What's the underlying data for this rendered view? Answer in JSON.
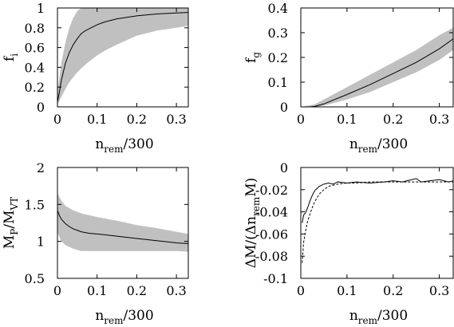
{
  "chart_data": [
    {
      "type": "line",
      "id": "fi",
      "ylabel": "f",
      "ylabel_sub": "i",
      "xlabel": "n",
      "xlabel_sub": "rem",
      "xlabel_suffix": "/300",
      "xlim": [
        0,
        0.33
      ],
      "ylim": [
        0,
        1
      ],
      "xticks": [
        0,
        0.1,
        0.2,
        0.3
      ],
      "xtick_labels": [
        "0",
        "0.1",
        "0.2",
        "0.3"
      ],
      "yticks": [
        0,
        0.2,
        0.4,
        0.6,
        0.8,
        1
      ],
      "ytick_labels": [
        "0",
        "0.2",
        "0.4",
        "0.6",
        "0.8",
        "1"
      ],
      "colors": {
        "band": "#c0c0c0",
        "line": "#000000"
      },
      "band": {
        "x": [
          0,
          0.01,
          0.02,
          0.03,
          0.04,
          0.05,
          0.06,
          0.08,
          0.1,
          0.12,
          0.15,
          0.2,
          0.25,
          0.3,
          0.33
        ],
        "lower": [
          0.02,
          0.1,
          0.18,
          0.25,
          0.3,
          0.35,
          0.39,
          0.46,
          0.52,
          0.57,
          0.63,
          0.72,
          0.77,
          0.8,
          0.82
        ],
        "upper": [
          0.15,
          0.45,
          0.65,
          0.8,
          0.9,
          0.97,
          1.0,
          1.0,
          1.0,
          1.0,
          1.0,
          1.0,
          1.0,
          1.0,
          1.0
        ]
      },
      "series": [
        {
          "x": [
            0,
            0.005,
            0.01,
            0.02,
            0.03,
            0.04,
            0.05,
            0.06,
            0.07,
            0.08,
            0.1,
            0.12,
            0.15,
            0.2,
            0.25,
            0.3,
            0.33
          ],
          "values": [
            0.05,
            0.15,
            0.27,
            0.44,
            0.55,
            0.63,
            0.69,
            0.74,
            0.77,
            0.79,
            0.83,
            0.86,
            0.89,
            0.92,
            0.94,
            0.95,
            0.955
          ]
        }
      ]
    },
    {
      "type": "line",
      "id": "fg",
      "ylabel": "f",
      "ylabel_sub": "g",
      "xlabel": "n",
      "xlabel_sub": "rem",
      "xlabel_suffix": "/300",
      "xlim": [
        0,
        0.33
      ],
      "ylim": [
        0,
        0.4
      ],
      "xticks": [
        0,
        0.1,
        0.2,
        0.3
      ],
      "xtick_labels": [
        "0",
        "0.1",
        "0.2",
        "0.3"
      ],
      "yticks": [
        0,
        0.1,
        0.2,
        0.3,
        0.4
      ],
      "ytick_labels": [
        "0",
        "0.1",
        "0.2",
        "0.3",
        "0.4"
      ],
      "colors": {
        "band": "#c0c0c0",
        "line": "#000000"
      },
      "band": {
        "x": [
          0,
          0.03,
          0.05,
          0.1,
          0.15,
          0.2,
          0.25,
          0.3,
          0.33
        ],
        "lower": [
          0,
          0,
          0.005,
          0.03,
          0.06,
          0.1,
          0.14,
          0.19,
          0.23
        ],
        "upper": [
          0,
          0.01,
          0.03,
          0.08,
          0.13,
          0.18,
          0.23,
          0.29,
          0.32
        ]
      },
      "series": [
        {
          "x": [
            0,
            0.01,
            0.02,
            0.03,
            0.05,
            0.1,
            0.15,
            0.2,
            0.25,
            0.3,
            0.33
          ],
          "values": [
            0,
            0,
            0,
            0.002,
            0.012,
            0.05,
            0.09,
            0.135,
            0.18,
            0.235,
            0.275
          ]
        }
      ]
    },
    {
      "type": "line",
      "id": "mp",
      "ylabel": "M",
      "ylabel_sub": "P",
      "ylabel_mid": "/M",
      "ylabel_sub2": "VT",
      "xlabel": "n",
      "xlabel_sub": "rem",
      "xlabel_suffix": "/300",
      "xlim": [
        0,
        0.33
      ],
      "ylim": [
        0.5,
        2
      ],
      "xticks": [
        0,
        0.1,
        0.2,
        0.3
      ],
      "xtick_labels": [
        "0",
        "0.1",
        "0.2",
        "0.3"
      ],
      "yticks": [
        0.5,
        1,
        1.5,
        2
      ],
      "ytick_labels": [
        "0.5",
        "1",
        "1.5",
        "2"
      ],
      "colors": {
        "band": "#c0c0c0",
        "line": "#000000"
      },
      "band": {
        "x": [
          0,
          0.01,
          0.02,
          0.04,
          0.06,
          0.1,
          0.15,
          0.2,
          0.25,
          0.3,
          0.33
        ],
        "lower": [
          1.12,
          1.0,
          0.95,
          0.9,
          0.87,
          0.87,
          0.87,
          0.87,
          0.87,
          0.87,
          0.86
        ],
        "upper": [
          1.65,
          1.55,
          1.48,
          1.42,
          1.38,
          1.33,
          1.28,
          1.22,
          1.18,
          1.13,
          1.1
        ]
      },
      "series": [
        {
          "x": [
            0,
            0.005,
            0.01,
            0.02,
            0.03,
            0.04,
            0.05,
            0.06,
            0.08,
            0.1,
            0.12,
            0.15,
            0.2,
            0.25,
            0.3,
            0.33
          ],
          "values": [
            1.42,
            1.35,
            1.3,
            1.24,
            1.2,
            1.17,
            1.15,
            1.13,
            1.11,
            1.1,
            1.09,
            1.07,
            1.04,
            1.01,
            0.98,
            0.97
          ]
        }
      ]
    },
    {
      "type": "line",
      "id": "dm",
      "ylabel": "ΔM/(Δn",
      "ylabel_sub": "rem",
      "ylabel_suffix": "M)",
      "xlabel": "n",
      "xlabel_sub": "rem",
      "xlabel_suffix": "/300",
      "xlim": [
        0,
        0.33
      ],
      "ylim": [
        -0.1,
        0
      ],
      "xticks": [
        0,
        0.1,
        0.2,
        0.3
      ],
      "xtick_labels": [
        "0",
        "0.1",
        "0.2",
        "0.3"
      ],
      "yticks": [
        -0.1,
        -0.08,
        -0.06,
        -0.04,
        -0.02,
        0
      ],
      "ytick_labels": [
        "-0.1",
        "-0.08",
        "-0.06",
        "-0.04",
        "-0.02",
        "0"
      ],
      "colors": {
        "solid": "#000000",
        "dashed": "#000000"
      },
      "series": [
        {
          "style": "solid",
          "x": [
            0.003,
            0.006,
            0.01,
            0.015,
            0.02,
            0.025,
            0.03,
            0.035,
            0.04,
            0.05,
            0.06,
            0.07,
            0.08,
            0.1,
            0.12,
            0.15,
            0.18,
            0.2,
            0.22,
            0.25,
            0.26,
            0.28,
            0.3,
            0.32,
            0.33
          ],
          "values": [
            -0.05,
            -0.043,
            -0.041,
            -0.036,
            -0.03,
            -0.025,
            -0.021,
            -0.019,
            -0.017,
            -0.015,
            -0.014,
            -0.015,
            -0.013,
            -0.014,
            -0.013,
            -0.014,
            -0.013,
            -0.012,
            -0.013,
            -0.01,
            -0.013,
            -0.012,
            -0.011,
            -0.013,
            -0.012
          ]
        },
        {
          "style": "dashed",
          "x": [
            0.003,
            0.006,
            0.01,
            0.015,
            0.02,
            0.025,
            0.03,
            0.04,
            0.05,
            0.06,
            0.07,
            0.08,
            0.1,
            0.12,
            0.15,
            0.2,
            0.25,
            0.3,
            0.33
          ],
          "values": [
            -0.086,
            -0.068,
            -0.058,
            -0.048,
            -0.042,
            -0.036,
            -0.031,
            -0.024,
            -0.02,
            -0.017,
            -0.016,
            -0.015,
            -0.014,
            -0.014,
            -0.013,
            -0.013,
            -0.013,
            -0.013,
            -0.013
          ]
        }
      ]
    }
  ]
}
